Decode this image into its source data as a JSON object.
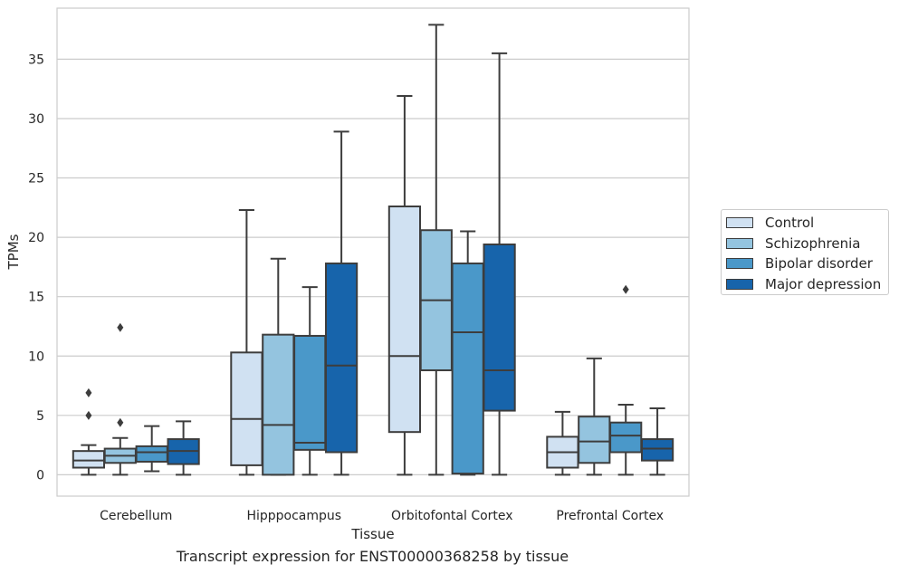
{
  "caption": "Transcript expression for ENST00000368258 by tissue",
  "chart_data": {
    "type": "box",
    "title": "",
    "xlabel": "Tissue",
    "ylabel": "TPMs",
    "ylim": [
      -1.8,
      39.3
    ],
    "yticks": [
      0,
      5,
      10,
      15,
      20,
      25,
      30,
      35
    ],
    "grid": "horizontal",
    "legend_position": "right",
    "categories": [
      "Cerebellum",
      "Hipppocampus",
      "Orbitofontal Cortex",
      "Prefrontal Cortex"
    ],
    "series": [
      {
        "name": "Control",
        "color": "#d0e1f2",
        "boxes": [
          {
            "whislo": 0.0,
            "q1": 0.6,
            "med": 1.2,
            "q3": 2.0,
            "whishi": 2.5,
            "fliers": [
              5.0,
              6.9
            ]
          },
          {
            "whislo": 0.0,
            "q1": 0.8,
            "med": 4.7,
            "q3": 10.3,
            "whishi": 22.3,
            "fliers": []
          },
          {
            "whislo": 0.0,
            "q1": 3.6,
            "med": 10.0,
            "q3": 22.6,
            "whishi": 31.9,
            "fliers": []
          },
          {
            "whislo": 0.0,
            "q1": 0.6,
            "med": 1.9,
            "q3": 3.2,
            "whishi": 5.3,
            "fliers": []
          }
        ]
      },
      {
        "name": "Schizophrenia",
        "color": "#94c4df",
        "boxes": [
          {
            "whislo": 0.0,
            "q1": 1.0,
            "med": 1.6,
            "q3": 2.2,
            "whishi": 3.1,
            "fliers": [
              4.4,
              12.4
            ]
          },
          {
            "whislo": 0.0,
            "q1": 0.0,
            "med": 4.2,
            "q3": 11.8,
            "whishi": 18.2,
            "fliers": []
          },
          {
            "whislo": 0.0,
            "q1": 8.8,
            "med": 14.7,
            "q3": 20.6,
            "whishi": 37.9,
            "fliers": []
          },
          {
            "whislo": 0.0,
            "q1": 1.0,
            "med": 2.8,
            "q3": 4.9,
            "whishi": 9.8,
            "fliers": []
          }
        ]
      },
      {
        "name": "Bipolar disorder",
        "color": "#4a98c9",
        "boxes": [
          {
            "whislo": 0.3,
            "q1": 1.1,
            "med": 1.9,
            "q3": 2.4,
            "whishi": 4.1,
            "fliers": []
          },
          {
            "whislo": 0.0,
            "q1": 2.1,
            "med": 2.7,
            "q3": 11.7,
            "whishi": 15.8,
            "fliers": []
          },
          {
            "whislo": 0.0,
            "q1": 0.1,
            "med": 12.0,
            "q3": 17.8,
            "whishi": 20.5,
            "fliers": []
          },
          {
            "whislo": 0.0,
            "q1": 1.9,
            "med": 3.3,
            "q3": 4.4,
            "whishi": 5.9,
            "fliers": [
              15.6
            ]
          }
        ]
      },
      {
        "name": "Major depression",
        "color": "#1764ab",
        "boxes": [
          {
            "whislo": 0.0,
            "q1": 0.9,
            "med": 2.0,
            "q3": 3.0,
            "whishi": 4.5,
            "fliers": []
          },
          {
            "whislo": 0.0,
            "q1": 1.9,
            "med": 9.2,
            "q3": 17.8,
            "whishi": 28.9,
            "fliers": []
          },
          {
            "whislo": 0.0,
            "q1": 5.4,
            "med": 8.8,
            "q3": 19.4,
            "whishi": 35.5,
            "fliers": []
          },
          {
            "whislo": 0.0,
            "q1": 1.2,
            "med": 2.2,
            "q3": 3.0,
            "whishi": 5.6,
            "fliers": []
          }
        ]
      }
    ]
  }
}
